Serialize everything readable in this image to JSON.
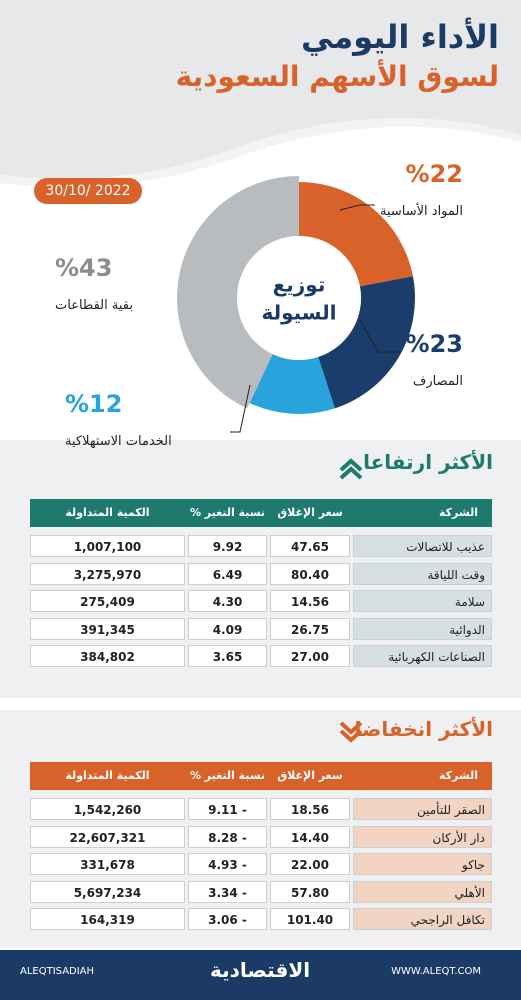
{
  "header": {
    "title": "الأداء اليومي",
    "subtitle": "لسوق الأسهم السعودية",
    "date": "30/10/ 2022"
  },
  "chart_data": {
    "type": "pie",
    "center_label": [
      "توزيع",
      "السيولة"
    ],
    "categories": [
      "المواد الأساسية",
      "المصارف",
      "الخدمات الاستهلاكية",
      "بقية القطاعات"
    ],
    "values": [
      22,
      23,
      12,
      43
    ],
    "value_labels": [
      "%22",
      "%23",
      "%12",
      "%43"
    ],
    "colors": [
      "#d9622b",
      "#1b3d6b",
      "#29a3dc",
      "#b9bcbf"
    ]
  },
  "gainers": {
    "title": "الأكثر ارتفاعا",
    "columns": [
      "الشركة",
      "سعر الإغلاق",
      "نسبة التغير %",
      "الكمية المتداولة"
    ],
    "rows": [
      [
        "عذيب للاتصالات",
        "47.65",
        "9.92",
        "1,007,100"
      ],
      [
        "وقت اللياقة",
        "80.40",
        "6.49",
        "3,275,970"
      ],
      [
        "سلامة",
        "14.56",
        "4.30",
        "275,409"
      ],
      [
        "الدوائية",
        "26.75",
        "4.09",
        "391,345"
      ],
      [
        "الصناعات الكهربائية",
        "27.00",
        "3.65",
        "384,802"
      ]
    ]
  },
  "losers": {
    "title": "الأكثر انخفاضا",
    "columns": [
      "الشركة",
      "سعر الإغلاق",
      "نسبة التغير %",
      "الكمية المتداولة"
    ],
    "rows": [
      [
        "الصقر للتأمين",
        "18.56",
        "- 9.11",
        "1,542,260"
      ],
      [
        "دار الأركان",
        "14.40",
        "- 8.28",
        "22,607,321"
      ],
      [
        "جاكو",
        "22.00",
        "- 4.93",
        "331,678"
      ],
      [
        "الأهلي",
        "57.80",
        "- 3.34",
        "5,697,234"
      ],
      [
        "تكافل الراجحي",
        "101.40",
        "- 3.06",
        "164,319"
      ]
    ]
  },
  "footer": {
    "handle": "ALEQTISADIAH",
    "logo": "الاقتصادية",
    "website": "WWW.ALEQT.COM"
  }
}
